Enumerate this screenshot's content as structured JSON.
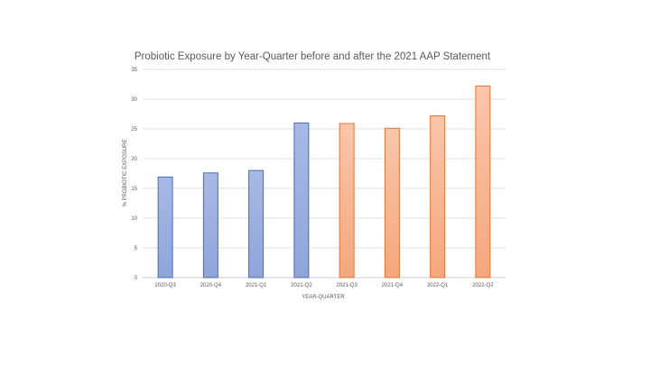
{
  "chart_data": {
    "type": "bar",
    "title": "Probiotic Exposure by Year-Quarter before and after the 2021 AAP Statement",
    "xlabel": "YEAR-QUARTER",
    "ylabel": "% PROBIOTIC EXPOSURE",
    "categories": [
      "2020-Q3",
      "2020-Q4",
      "2021-Q1",
      "2021-Q2",
      "2021-Q3",
      "2021-Q4",
      "2022-Q1",
      "2022-Q2"
    ],
    "values": [
      16.9,
      17.6,
      18.0,
      26.0,
      25.9,
      25.1,
      27.2,
      32.2
    ],
    "ylim": [
      0,
      35
    ],
    "yticks": [
      0,
      5,
      10,
      15,
      20,
      25,
      30,
      35
    ],
    "grid": true,
    "legend": "none",
    "colors": {
      "before_fill_top": "#a8b9e4",
      "before_fill_bottom": "#8fa5db",
      "before_stroke": "#4a6bb8",
      "after_fill_top": "#f9c6ab",
      "after_fill_bottom": "#f5a77c",
      "after_stroke": "#e0763a",
      "grid": "#d9d9d9",
      "text": "#595959"
    },
    "before_count": 4
  }
}
